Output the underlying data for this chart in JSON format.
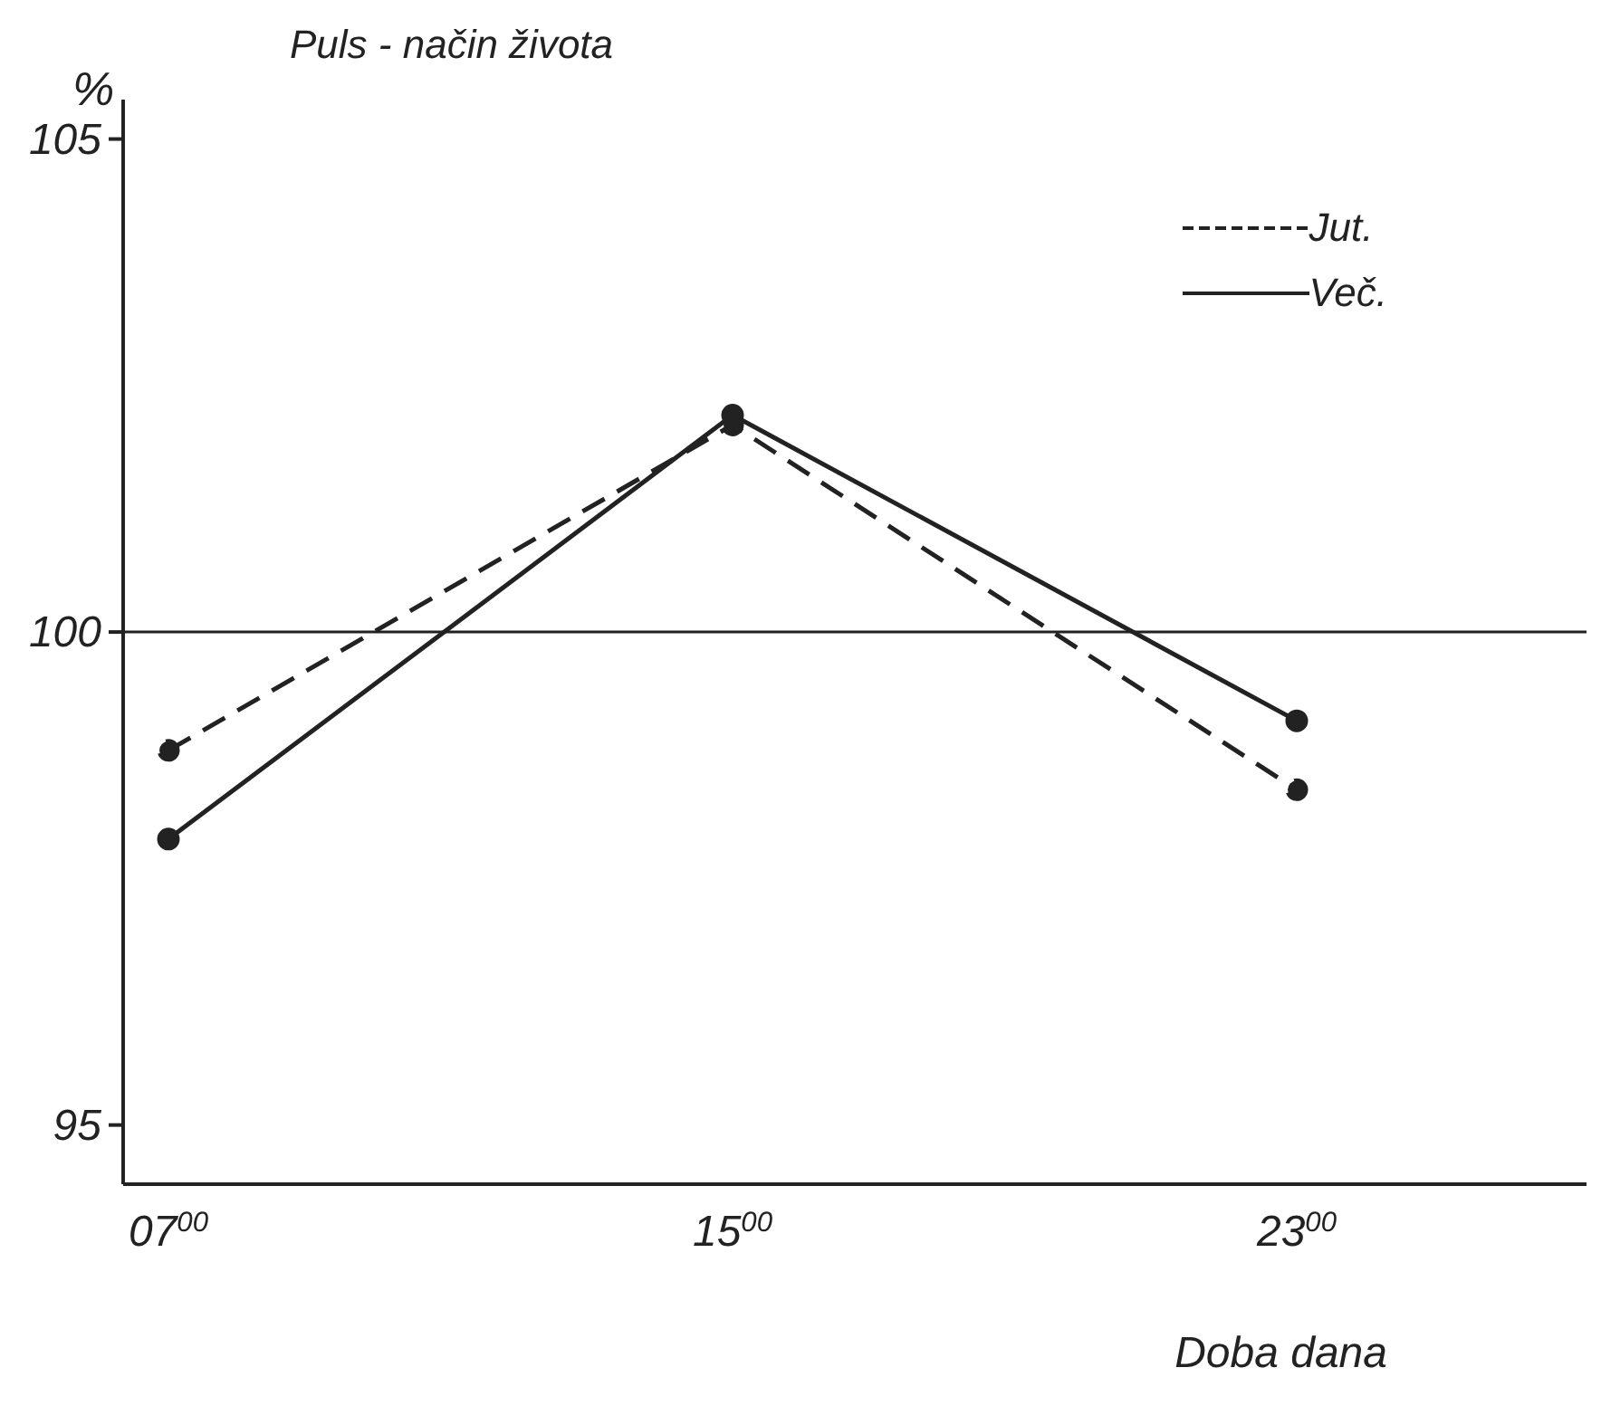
{
  "chart_data": {
    "type": "line",
    "title": "Puls - način života",
    "ylabel": "%",
    "xlabel": "Doba dana",
    "categories": [
      "07$^{00}$",
      "15$^{00}$",
      "23$^{00}$"
    ],
    "ylim": [
      94.4,
      105.4
    ],
    "yticks": [
      95,
      100,
      105
    ],
    "series": [
      {
        "name": "Jut.",
        "color": "#222222",
        "values": [
          98.8,
          102.1,
          98.4
        ],
        "line_style": "dashed"
      },
      {
        "name": "Več.",
        "color": "#222222",
        "values": [
          97.9,
          102.2,
          99.1
        ],
        "line_style": "solid"
      }
    ],
    "ref_lines": [
      {
        "axis": "y",
        "value": 100,
        "label": null,
        "color": "#222222"
      }
    ],
    "marker": "circle",
    "legend": "top right",
    "grid": false
  }
}
